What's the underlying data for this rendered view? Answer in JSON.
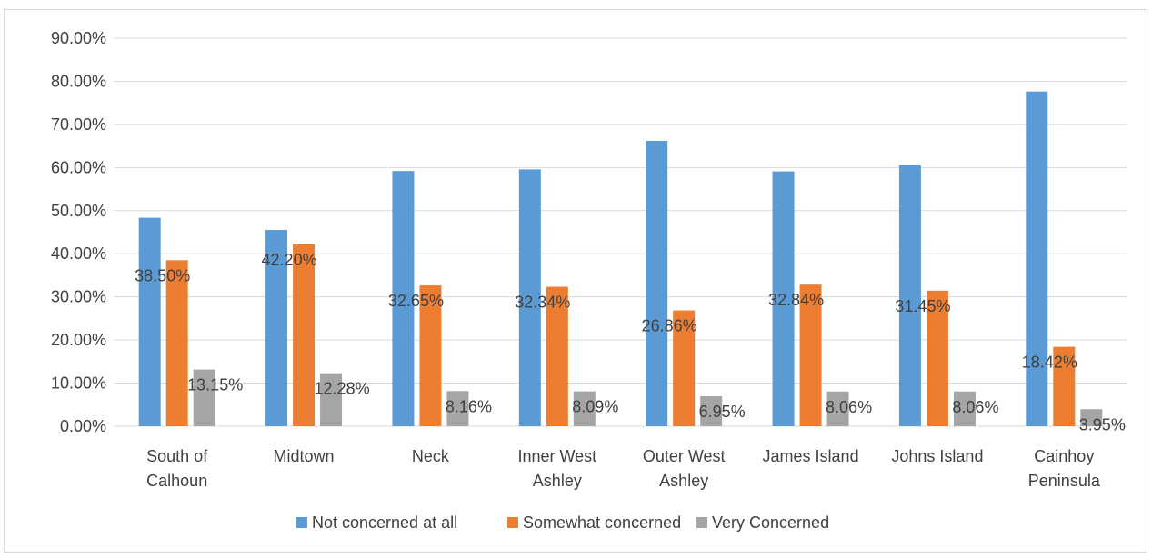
{
  "chart_data": {
    "type": "bar",
    "title": "",
    "xlabel": "",
    "ylabel": "",
    "ylim": [
      0,
      0.9
    ],
    "y_ticks": [
      0,
      0.1,
      0.2,
      0.3,
      0.4,
      0.5,
      0.6,
      0.7,
      0.8,
      0.9
    ],
    "y_tick_labels": [
      "0.00%",
      "10.00%",
      "20.00%",
      "30.00%",
      "40.00%",
      "50.00%",
      "60.00%",
      "70.00%",
      "80.00%",
      "90.00%"
    ],
    "grid": true,
    "legend_position": "bottom",
    "categories": [
      [
        "South of",
        "Calhoun"
      ],
      [
        "Midtown"
      ],
      [
        "Neck"
      ],
      [
        "Inner West",
        "Ashley"
      ],
      [
        "Outer West",
        "Ashley"
      ],
      [
        "James Island"
      ],
      [
        "Johns Island"
      ],
      [
        "Cainhoy",
        "Peninsula"
      ]
    ],
    "series": [
      {
        "name": "Not concerned at all",
        "color": "#5b9bd5",
        "values": [
          0.4835,
          0.4552,
          0.5919,
          0.5957,
          0.6619,
          0.591,
          0.6049,
          0.7763
        ],
        "labels": [
          "",
          "",
          "",
          "",
          "",
          "",
          "",
          ""
        ]
      },
      {
        "name": "Somewhat concerned",
        "color": "#ed7d31",
        "values": [
          0.385,
          0.422,
          0.3265,
          0.3234,
          0.2686,
          0.3284,
          0.3145,
          0.1842
        ],
        "labels": [
          "38.50%",
          "42.20%",
          "32.65%",
          "32.34%",
          "26.86%",
          "32.84%",
          "31.45%",
          "18.42%"
        ]
      },
      {
        "name": "Very Concerned",
        "color": "#a5a5a5",
        "values": [
          0.1315,
          0.1228,
          0.0816,
          0.0809,
          0.0695,
          0.0806,
          0.0806,
          0.0395
        ],
        "labels": [
          "13.15%",
          "12.28%",
          "8.16%",
          "8.09%",
          "6.95%",
          "8.06%",
          "8.06%",
          "3.95%"
        ]
      }
    ]
  }
}
